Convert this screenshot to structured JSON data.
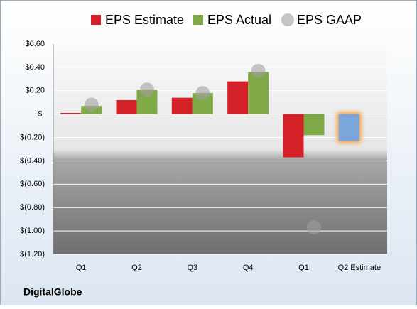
{
  "chart_data": {
    "type": "bar",
    "categories": [
      "Q1",
      "Q2",
      "Q3",
      "Q4",
      "Q1",
      "Q2 Estimate"
    ],
    "series": [
      {
        "name": "EPS Estimate",
        "color": "#d42027",
        "values": [
          0.01,
          0.12,
          0.14,
          0.28,
          -0.37,
          -0.23
        ],
        "point_colors": [
          "#d42027",
          "#d42027",
          "#d42027",
          "#d42027",
          "#d42027",
          "#7aa6dc"
        ]
      },
      {
        "name": "EPS Actual",
        "color": "#7fa846",
        "values": [
          0.07,
          0.21,
          0.18,
          0.36,
          -0.18,
          null
        ]
      },
      {
        "name": "EPS GAAP",
        "color": "#a0a0a0",
        "marker": "circle",
        "values": [
          0.08,
          0.21,
          0.18,
          0.37,
          -0.97,
          null
        ]
      }
    ],
    "ylim": [
      -1.2,
      0.6
    ],
    "yticks": [
      {
        "value": 0.6,
        "label": "$0.60"
      },
      {
        "value": 0.4,
        "label": "$0.40"
      },
      {
        "value": 0.2,
        "label": "$0.20"
      },
      {
        "value": 0,
        "label": "$-"
      },
      {
        "value": -0.2,
        "label": "$(0.20)"
      },
      {
        "value": -0.4,
        "label": "$(0.40)"
      },
      {
        "value": -0.6,
        "label": "$(0.60)"
      },
      {
        "value": -0.8,
        "label": "$(0.80)"
      },
      {
        "value": -1.0,
        "label": "$(1.00)"
      },
      {
        "value": -1.2,
        "label": "$(1.20)"
      }
    ],
    "grid": true,
    "legend": "top",
    "footer": "DigitalGlobe"
  }
}
